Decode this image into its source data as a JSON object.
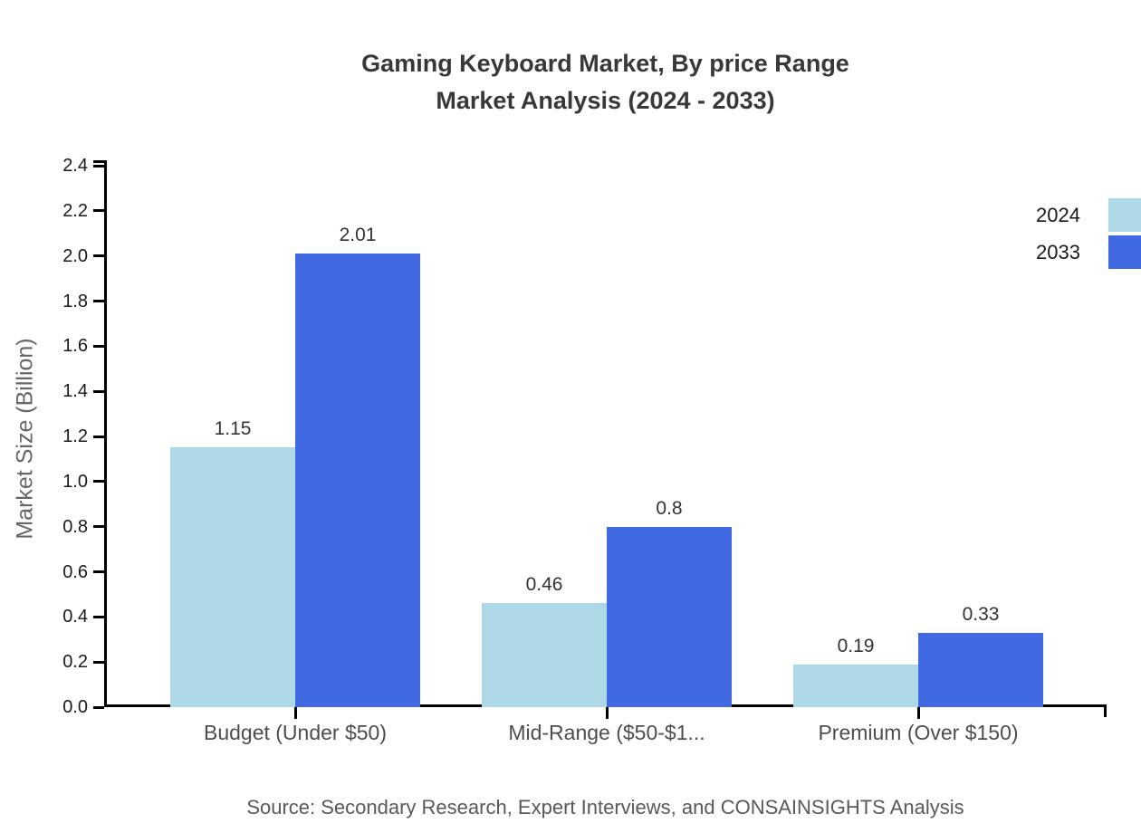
{
  "title": {
    "line1": "Gaming Keyboard Market, By price Range",
    "line2": "Market Analysis (2024 - 2033)"
  },
  "source": "Source: Secondary Research, Expert Interviews, and CONSAINSIGHTS Analysis",
  "colors": {
    "series_2024": "#ADD8E6",
    "series_2033": "#4169E1",
    "axis": "#000000",
    "title_text": "#383838",
    "tick_text": "#1a1a1a",
    "category_text": "#4d4d4d",
    "muted_text": "#666666"
  },
  "chart_data": {
    "type": "bar",
    "title": "Gaming Keyboard Market, By price Range Market Analysis (2024 - 2033)",
    "categories": [
      "Budget (Under $50)",
      "Mid-Range ($50-$1...",
      "Premium (Over $150)"
    ],
    "series": [
      {
        "name": "2024",
        "color": "#ADD8E6",
        "values": [
          1.15,
          0.46,
          0.19
        ]
      },
      {
        "name": "2033",
        "color": "#4169E1",
        "values": [
          2.01,
          0.8,
          0.33
        ]
      }
    ],
    "value_labels": [
      [
        "1.15",
        "0.46",
        "0.19"
      ],
      [
        "2.01",
        "0.8",
        "0.33"
      ]
    ],
    "xlabel": "",
    "ylabel": "Market Size (Billion)",
    "ylim": [
      0,
      2.4
    ],
    "ytick_step": 0.2,
    "yticks": [
      "0.0",
      "0.2",
      "0.4",
      "0.6",
      "0.8",
      "1.0",
      "1.2",
      "1.4",
      "1.6",
      "1.8",
      "2.0",
      "2.2",
      "2.4"
    ],
    "grid": false,
    "legend_position": "right"
  }
}
